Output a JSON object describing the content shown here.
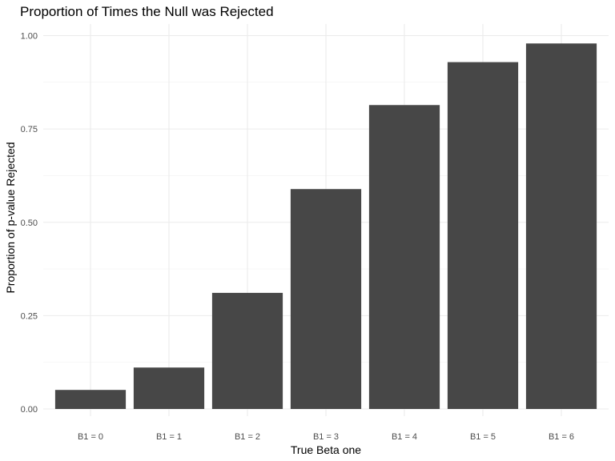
{
  "chart_data": {
    "type": "bar",
    "title": "Proportion of Times the Null was Rejected",
    "xlabel": "True Beta one",
    "ylabel": "Proportion of p-value Rejected",
    "categories": [
      "B1 = 0",
      "B1 = 1",
      "B1 = 2",
      "B1 = 3",
      "B1 = 4",
      "B1 = 5",
      "B1 = 6"
    ],
    "values": [
      0.051,
      0.111,
      0.311,
      0.589,
      0.814,
      0.929,
      0.979
    ],
    "ylim": [
      0,
      1.0
    ],
    "yticks": [
      0.0,
      0.25,
      0.5,
      0.75,
      1.0
    ],
    "ytick_labels": [
      "0.00",
      "0.25",
      "0.50",
      "0.75",
      "1.00"
    ],
    "grid": true,
    "legend": "none",
    "bar_color": "#474747",
    "grid_color": "#ebebeb"
  }
}
